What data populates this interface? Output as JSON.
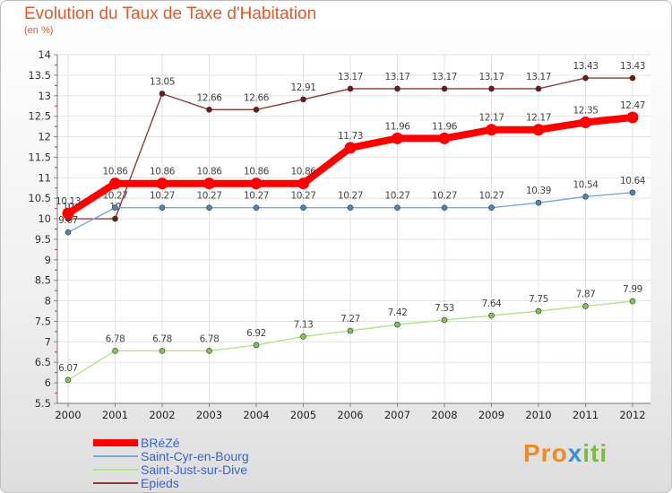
{
  "title": "Evolution du Taux de Taxe d'Habitation",
  "subtitle": "(en %)",
  "chart_data": {
    "type": "line",
    "x": [
      "2000",
      "2001",
      "2002",
      "2003",
      "2004",
      "2005",
      "2006",
      "2007",
      "2008",
      "2009",
      "2010",
      "2011",
      "2012"
    ],
    "ylim": [
      5.5,
      14
    ],
    "yticks": [
      "5.5",
      "6",
      "6.5",
      "7",
      "7.5",
      "8",
      "8.5",
      "9",
      "9.5",
      "10",
      "10.5",
      "11",
      "11.5",
      "12",
      "12.5",
      "13",
      "13.5",
      "14"
    ],
    "xlabel": "",
    "ylabel": "",
    "series": [
      {
        "name": "Epieds",
        "color": "#8b3a3a",
        "point_color": "#6e1818",
        "values": [
          10.0,
          10.0,
          13.05,
          12.66,
          12.66,
          12.91,
          13.17,
          13.17,
          13.17,
          13.17,
          13.17,
          13.43,
          13.43
        ],
        "labels": [
          "10",
          "10",
          "13.05",
          "12.66",
          "12.66",
          "12.91",
          "13.17",
          "13.17",
          "13.17",
          "13.17",
          "13.17",
          "13.43",
          "13.43"
        ]
      },
      {
        "name": "Saint-Just-sur-Dive",
        "color": "#b4e28a",
        "point_color": "#7dc84a",
        "values": [
          6.07,
          6.78,
          6.78,
          6.78,
          6.92,
          7.13,
          7.27,
          7.42,
          7.53,
          7.64,
          7.75,
          7.87,
          7.99
        ],
        "labels": [
          "6.07",
          "6.78",
          "6.78",
          "6.78",
          "6.92",
          "7.13",
          "7.27",
          "7.42",
          "7.53",
          "7.64",
          "7.75",
          "7.87",
          "7.99"
        ]
      },
      {
        "name": "Saint-Cyr-en-Bourg",
        "color": "#7aa7d6",
        "point_color": "#4a86c6",
        "values": [
          9.67,
          10.27,
          10.27,
          10.27,
          10.27,
          10.27,
          10.27,
          10.27,
          10.27,
          10.27,
          10.39,
          10.54,
          10.64
        ],
        "labels": [
          "9.67",
          "10.27",
          "10.27",
          "10.27",
          "10.27",
          "10.27",
          "10.27",
          "10.27",
          "10.27",
          "10.27",
          "10.39",
          "10.54",
          "10.64"
        ]
      },
      {
        "name": "BRéZé",
        "color": "#ff0000",
        "point_color": "#ff0000",
        "values": [
          10.13,
          10.86,
          10.86,
          10.86,
          10.86,
          10.86,
          11.73,
          11.96,
          11.96,
          12.17,
          12.17,
          12.35,
          12.47
        ],
        "labels": [
          "10.13",
          "10.86",
          "10.86",
          "10.86",
          "10.86",
          "10.86",
          "11.73",
          "11.96",
          "11.96",
          "12.17",
          "12.17",
          "12.35",
          "12.47"
        ]
      }
    ],
    "legend": {
      "placement": "bottom-left",
      "order": [
        "BRéZé",
        "Saint-Cyr-en-Bourg",
        "Saint-Just-sur-Dive",
        "Epieds"
      ]
    }
  },
  "logo": {
    "part1": "Pro",
    "part2": "x",
    "part3": "iti"
  }
}
